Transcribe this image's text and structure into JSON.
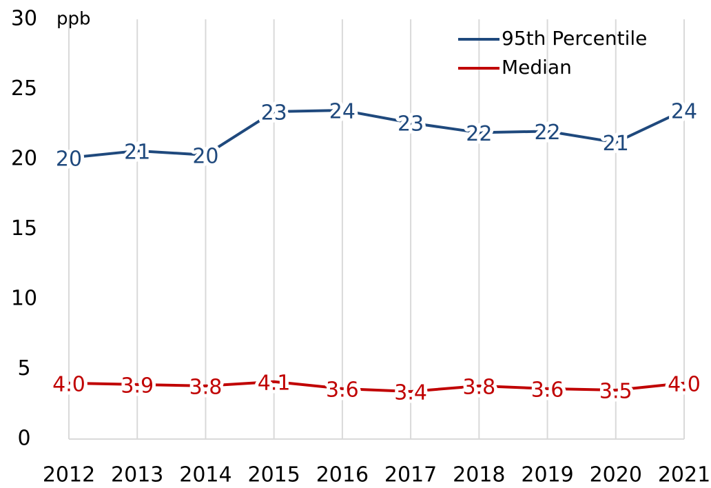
{
  "chart_data": {
    "type": "line",
    "y_label": "ppb",
    "categories": [
      "2012",
      "2013",
      "2014",
      "2015",
      "2016",
      "2017",
      "2018",
      "2019",
      "2020",
      "2021"
    ],
    "series": [
      {
        "name": "95th Percentile",
        "color": "#1f497d",
        "values": [
          20.1,
          20.6,
          20.3,
          23.4,
          23.5,
          22.6,
          21.9,
          22.0,
          21.2,
          23.5
        ],
        "value_labels": [
          "20",
          "21",
          "20",
          "23",
          "24",
          "23",
          "22",
          "22",
          "21",
          "24"
        ]
      },
      {
        "name": "Median",
        "color": "#c00000",
        "values": [
          4.0,
          3.9,
          3.8,
          4.1,
          3.6,
          3.4,
          3.8,
          3.6,
          3.5,
          4.0
        ],
        "value_labels": [
          "4.0",
          "3.9",
          "3.8",
          "4.1",
          "3.6",
          "3.4",
          "3.8",
          "3.6",
          "3.5",
          "4.0"
        ]
      }
    ],
    "ylim": [
      0,
      30
    ],
    "yticks": [
      0,
      5,
      10,
      15,
      20,
      25,
      30
    ],
    "grid": "x",
    "legend": "top-right"
  }
}
